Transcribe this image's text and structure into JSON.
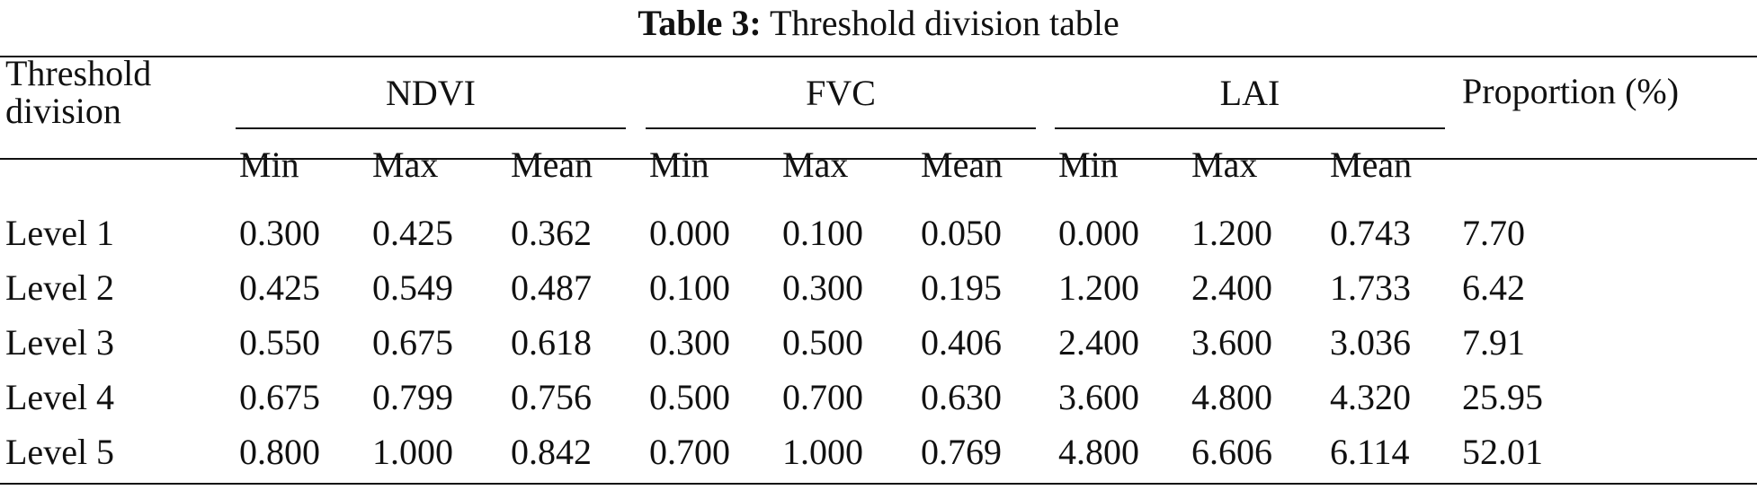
{
  "caption": {
    "label": "Table 3:",
    "title": "Threshold division table"
  },
  "header": {
    "row_label": [
      "Threshold",
      "division"
    ],
    "groups": [
      "NDVI",
      "FVC",
      "LAI"
    ],
    "sub": [
      "Min",
      "Max",
      "Mean"
    ],
    "proportion": "Proportion (%)"
  },
  "rows": [
    {
      "label": "Level 1",
      "values": [
        "0.300",
        "0.425",
        "0.362",
        "0.000",
        "0.100",
        "0.050",
        "0.000",
        "1.200",
        "0.743",
        "7.70"
      ]
    },
    {
      "label": "Level 2",
      "values": [
        "0.425",
        "0.549",
        "0.487",
        "0.100",
        "0.300",
        "0.195",
        "1.200",
        "2.400",
        "1.733",
        "6.42"
      ]
    },
    {
      "label": "Level 3",
      "values": [
        "0.550",
        "0.675",
        "0.618",
        "0.300",
        "0.500",
        "0.406",
        "2.400",
        "3.600",
        "3.036",
        "7.91"
      ]
    },
    {
      "label": "Level 4",
      "values": [
        "0.675",
        "0.799",
        "0.756",
        "0.500",
        "0.700",
        "0.630",
        "3.600",
        "4.800",
        "4.320",
        "25.95"
      ]
    },
    {
      "label": "Level 5",
      "values": [
        "0.800",
        "1.000",
        "0.842",
        "0.700",
        "1.000",
        "0.769",
        "4.800",
        "6.606",
        "6.114",
        "52.01"
      ]
    }
  ]
}
